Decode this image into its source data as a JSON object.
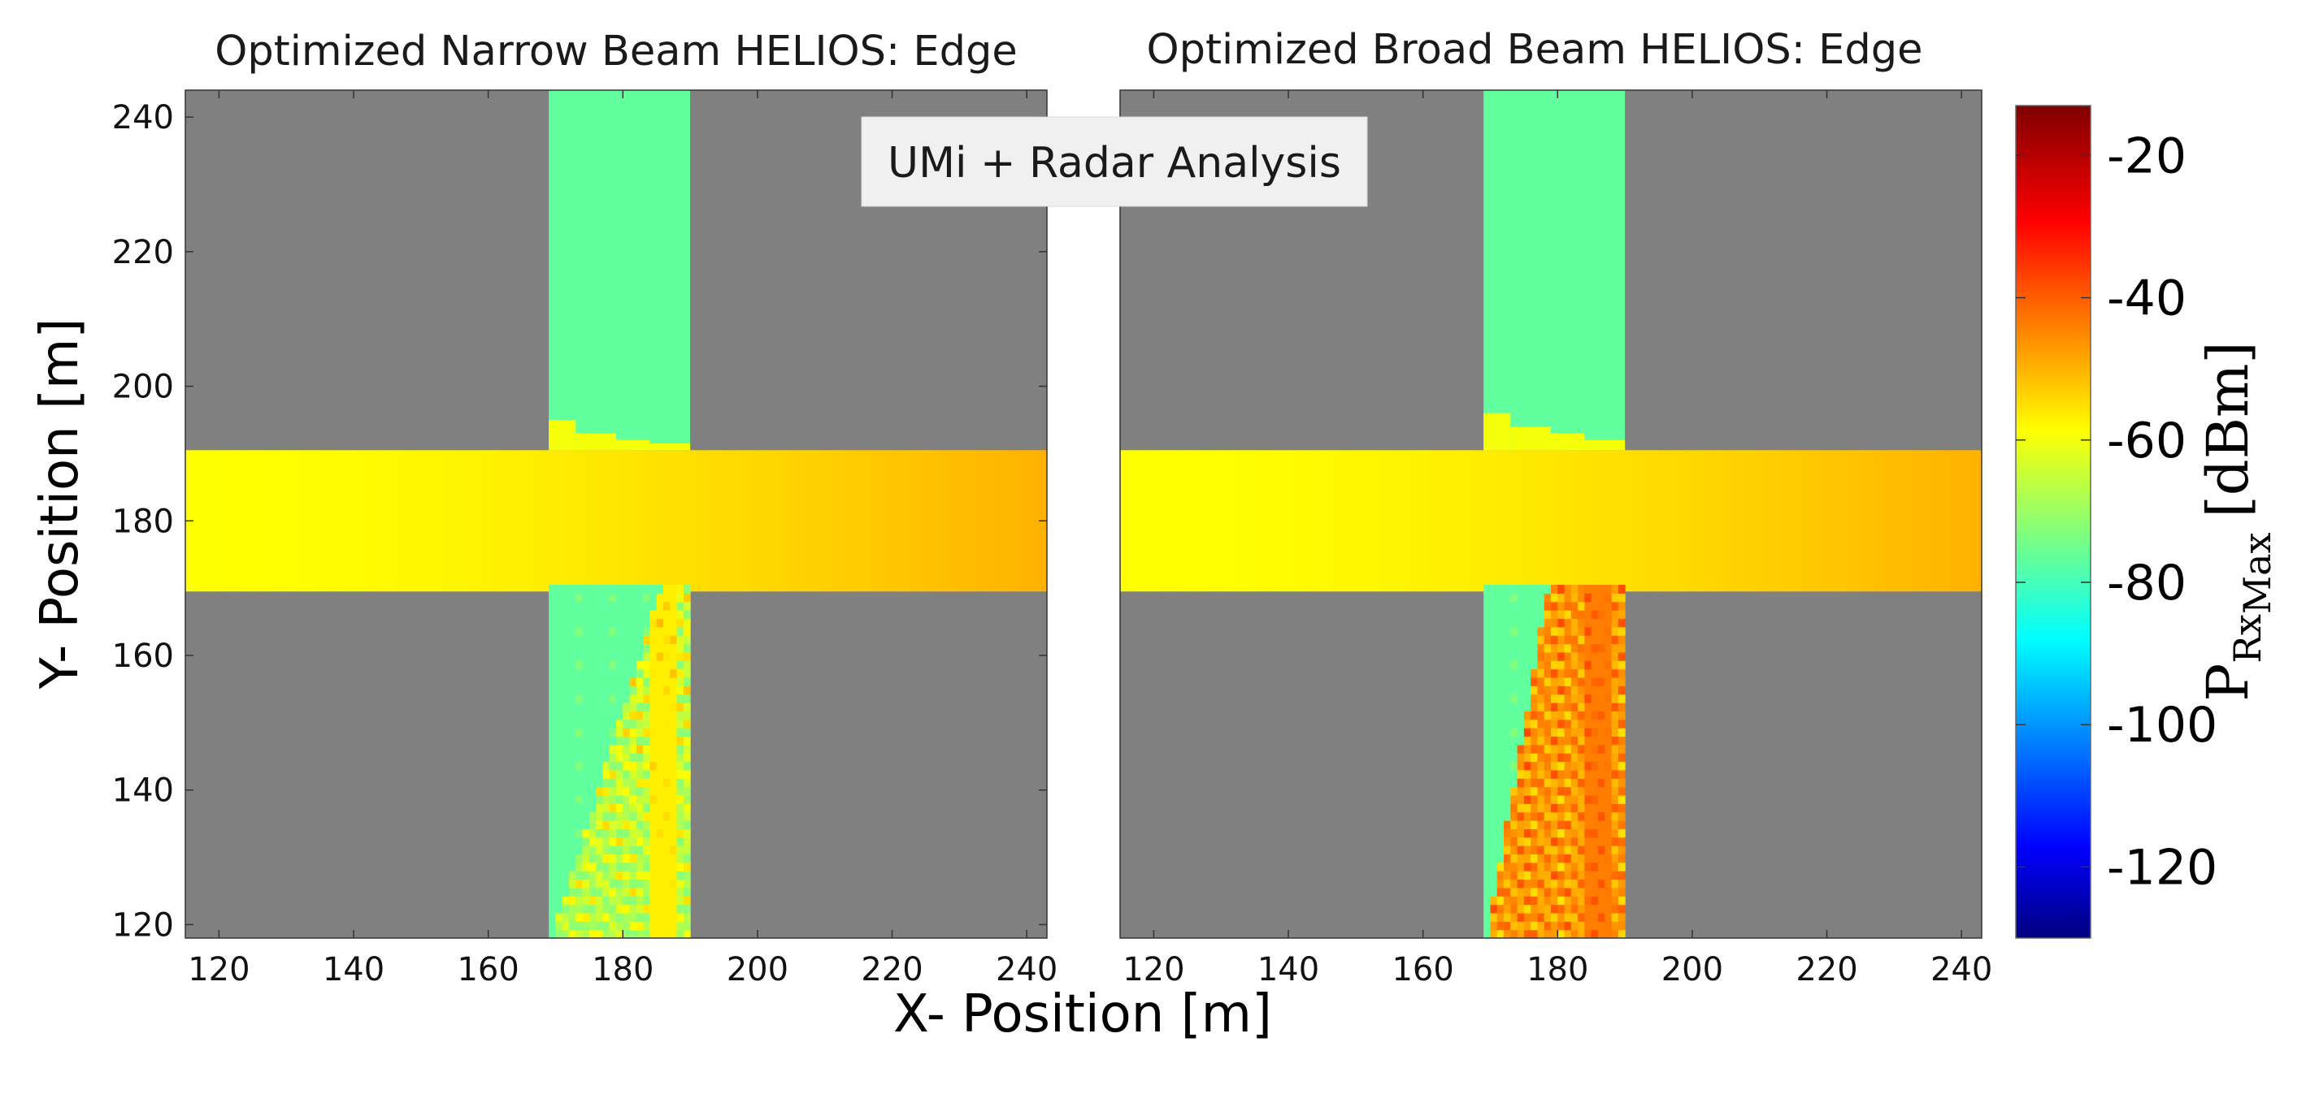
{
  "chart_data": [
    {
      "type": "heatmap",
      "title": "Optimized Narrow Beam HELIOS: Edge",
      "xlabel": "X- Position [m]",
      "ylabel": "Y- Position [m]",
      "xlim": [
        115,
        243
      ],
      "ylim": [
        118,
        244
      ],
      "x_ticks": [
        "120",
        "140",
        "160",
        "180",
        "200",
        "220",
        "240"
      ],
      "y_ticks": [
        "120",
        "140",
        "160",
        "180",
        "200",
        "220",
        "240"
      ],
      "building_color": "#808080",
      "roads": {
        "horizontal": {
          "x": [
            115,
            243
          ],
          "y": [
            169.5,
            190.5
          ],
          "value_west": -57,
          "value_east": -48
        },
        "vertical": {
          "x": [
            169,
            190
          ],
          "y": [
            118,
            244
          ],
          "value": -75
        },
        "edge_steps": [
          [
            169,
            195
          ],
          [
            173,
            193
          ],
          [
            179,
            192
          ],
          [
            184,
            191.5
          ],
          [
            190,
            191
          ]
        ]
      },
      "beam_pattern": {
        "description": "narrow",
        "streak_value": -60,
        "peak_value": -55
      }
    },
    {
      "type": "heatmap",
      "title": "Optimized Broad Beam HELIOS: Edge",
      "xlabel": "X- Position [m]",
      "xlim": [
        115,
        243
      ],
      "ylim": [
        118,
        244
      ],
      "x_ticks": [
        "120",
        "140",
        "160",
        "180",
        "200",
        "220",
        "240"
      ],
      "building_color": "#808080",
      "roads": {
        "horizontal": {
          "x": [
            115,
            243
          ],
          "y": [
            169.5,
            190.5
          ],
          "value_west": -57,
          "value_east": -48
        },
        "vertical": {
          "x": [
            169,
            190
          ],
          "y": [
            118,
            244
          ],
          "value": -75
        },
        "edge_steps": [
          [
            169,
            196
          ],
          [
            173,
            194
          ],
          [
            179,
            193
          ],
          [
            184,
            192
          ],
          [
            190,
            191
          ]
        ]
      },
      "beam_pattern": {
        "description": "broad",
        "streak_value": -45,
        "peak_value": -40
      }
    }
  ],
  "annotation": "UMi + Radar Analysis",
  "colorbar": {
    "label_main": "P",
    "label_sub1": "Rx",
    "label_sub2": "Max",
    "label_unit": "[dBm]",
    "range": [
      -130,
      -13
    ],
    "ticks": [
      "-20",
      "-40",
      "-60",
      "-80",
      "-100",
      "-120"
    ],
    "colormap": "jet"
  }
}
